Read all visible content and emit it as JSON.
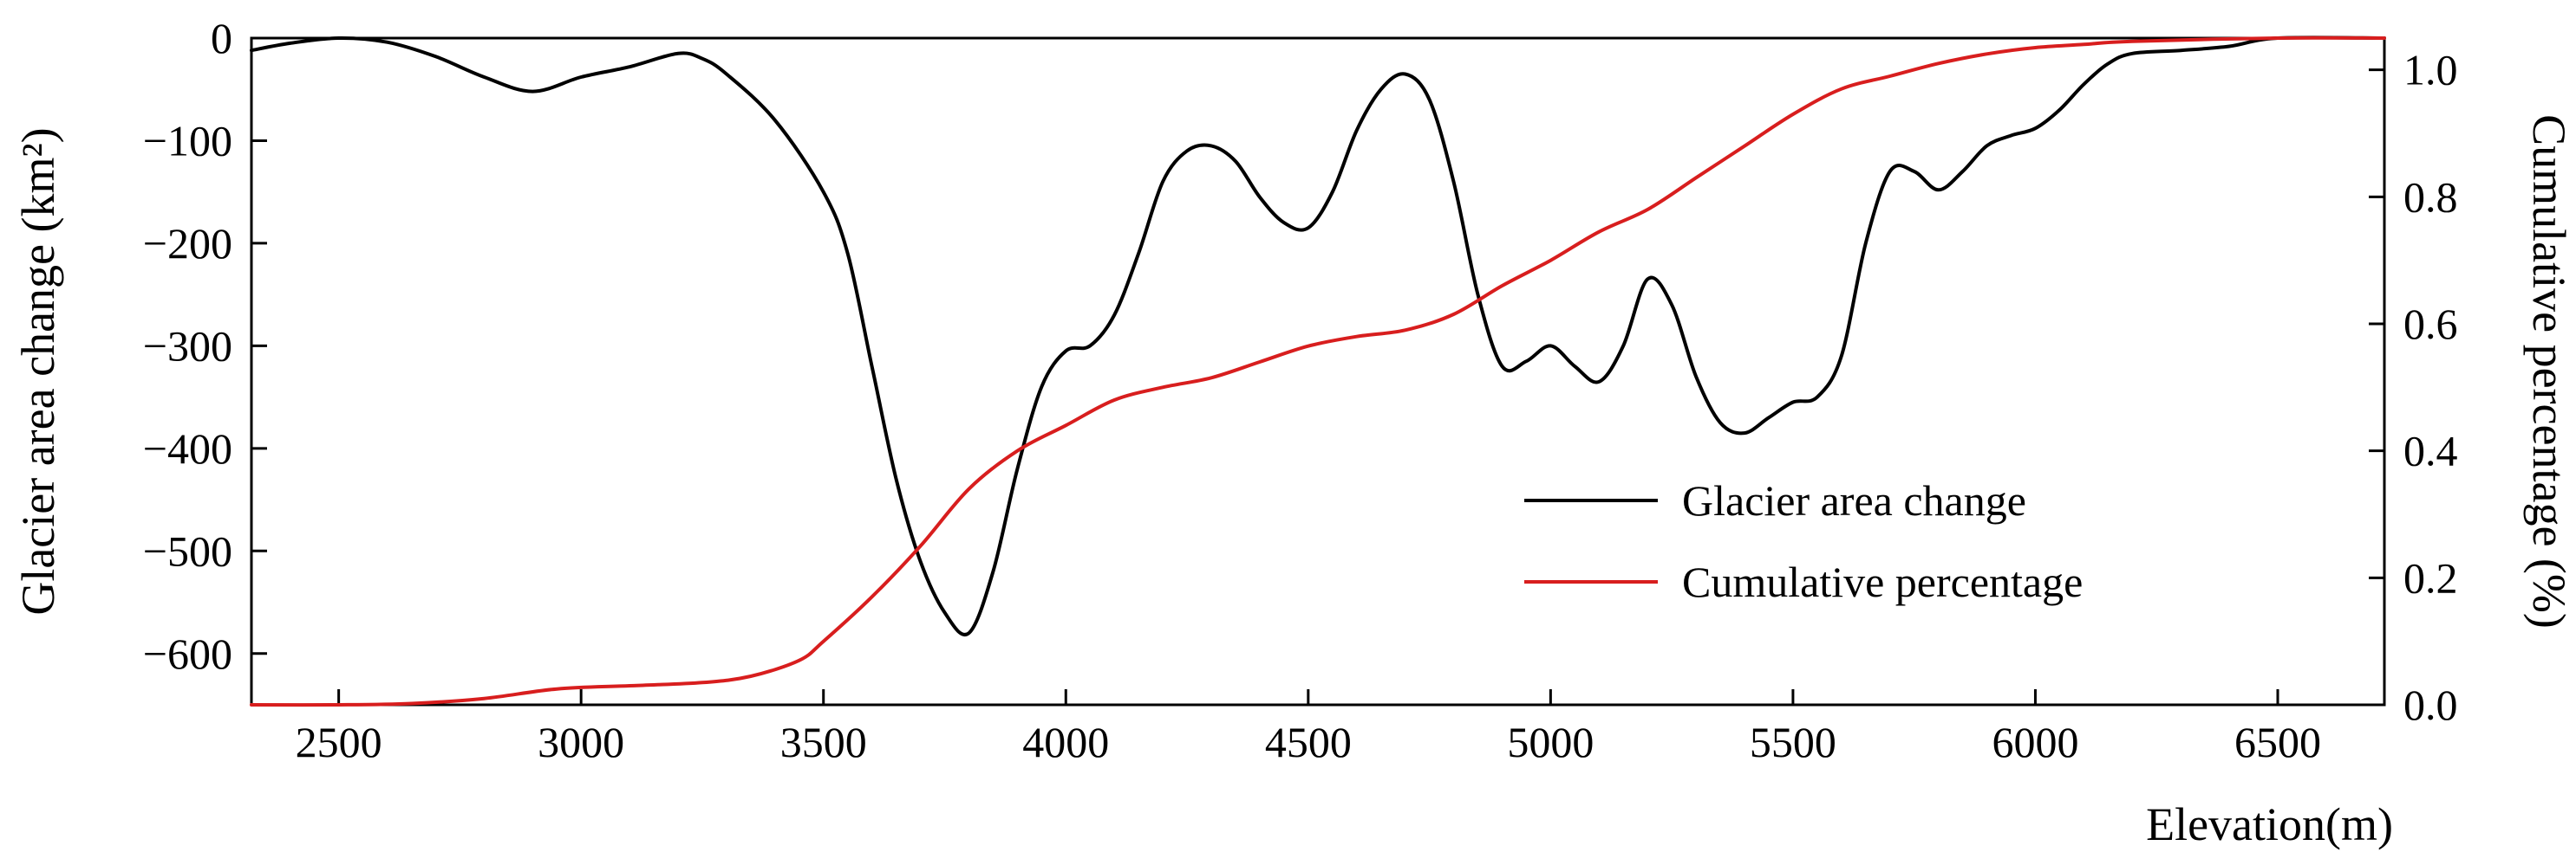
{
  "chart_data": {
    "type": "line",
    "title": "",
    "xlabel": "Elevation(m)",
    "ylabel_left": "Glacier area change (km²)",
    "ylabel_right": "Cumulative percentage (%)",
    "xlim": [
      2320,
      6720
    ],
    "ylim_left": [
      -650,
      0
    ],
    "ylim_right": [
      0,
      1.05
    ],
    "x_ticks": [
      2500,
      3000,
      3500,
      4000,
      4500,
      5000,
      5500,
      6000,
      6500
    ],
    "x_tick_labels": [
      "2500",
      "3000",
      "3500",
      "4000",
      "4500",
      "5000",
      "5500",
      "6000",
      "6500"
    ],
    "y_left_ticks": [
      0,
      -100,
      -200,
      -300,
      -400,
      -500,
      -600
    ],
    "y_left_tick_labels": [
      "0",
      "−100",
      "−200",
      "−300",
      "−400",
      "−500",
      "−600"
    ],
    "y_right_ticks": [
      0,
      0.2,
      0.4,
      0.6,
      0.8,
      1.0
    ],
    "y_right_tick_labels": [
      "0.0",
      "0.2",
      "0.4",
      "0.6",
      "0.8",
      "1.0"
    ],
    "legend_position": "center-right",
    "grid": false,
    "series": [
      {
        "name": "Glacier area change",
        "axis": "left",
        "color": "#000000",
        "x": [
          2320,
          2400,
          2500,
          2600,
          2700,
          2800,
          2900,
          3000,
          3100,
          3200,
          3250,
          3300,
          3400,
          3500,
          3550,
          3600,
          3650,
          3700,
          3750,
          3800,
          3850,
          3900,
          3950,
          4000,
          4050,
          4100,
          4150,
          4200,
          4250,
          4300,
          4350,
          4400,
          4450,
          4500,
          4550,
          4600,
          4650,
          4700,
          4750,
          4800,
          4850,
          4900,
          4950,
          5000,
          5050,
          5100,
          5150,
          5200,
          5250,
          5300,
          5350,
          5400,
          5450,
          5500,
          5550,
          5600,
          5650,
          5700,
          5750,
          5800,
          5850,
          5900,
          5950,
          6000,
          6050,
          6100,
          6150,
          6200,
          6300,
          6400,
          6500,
          6720
        ],
        "values": [
          -12,
          -5,
          0,
          -4,
          -18,
          -38,
          -52,
          -38,
          -28,
          -15,
          -20,
          -35,
          -80,
          -150,
          -210,
          -320,
          -430,
          -510,
          -560,
          -580,
          -520,
          -420,
          -340,
          -305,
          -300,
          -270,
          -210,
          -140,
          -110,
          -105,
          -120,
          -155,
          -180,
          -185,
          -150,
          -90,
          -50,
          -35,
          -60,
          -140,
          -250,
          -320,
          -315,
          -300,
          -320,
          -335,
          -300,
          -235,
          -260,
          -330,
          -375,
          -385,
          -370,
          -355,
          -350,
          -310,
          -200,
          -130,
          -130,
          -148,
          -130,
          -105,
          -95,
          -88,
          -70,
          -45,
          -25,
          -15,
          -12,
          -8,
          0,
          0
        ]
      },
      {
        "name": "Cumulative percentage",
        "axis": "right",
        "color": "#d81e1e",
        "x": [
          2320,
          2500,
          2650,
          2800,
          2950,
          3100,
          3250,
          3350,
          3450,
          3500,
          3600,
          3700,
          3800,
          3900,
          4000,
          4100,
          4200,
          4300,
          4400,
          4500,
          4600,
          4700,
          4800,
          4900,
          5000,
          5100,
          5200,
          5300,
          5400,
          5500,
          5600,
          5700,
          5800,
          5900,
          6000,
          6100,
          6200,
          6500,
          6720
        ],
        "values": [
          0.0,
          0.0,
          0.002,
          0.01,
          0.025,
          0.03,
          0.035,
          0.045,
          0.07,
          0.1,
          0.17,
          0.25,
          0.34,
          0.4,
          0.44,
          0.48,
          0.5,
          0.515,
          0.54,
          0.565,
          0.58,
          0.59,
          0.615,
          0.66,
          0.7,
          0.745,
          0.78,
          0.83,
          0.88,
          0.93,
          0.97,
          0.99,
          1.01,
          1.025,
          1.035,
          1.04,
          1.045,
          1.05,
          1.05
        ]
      }
    ]
  }
}
